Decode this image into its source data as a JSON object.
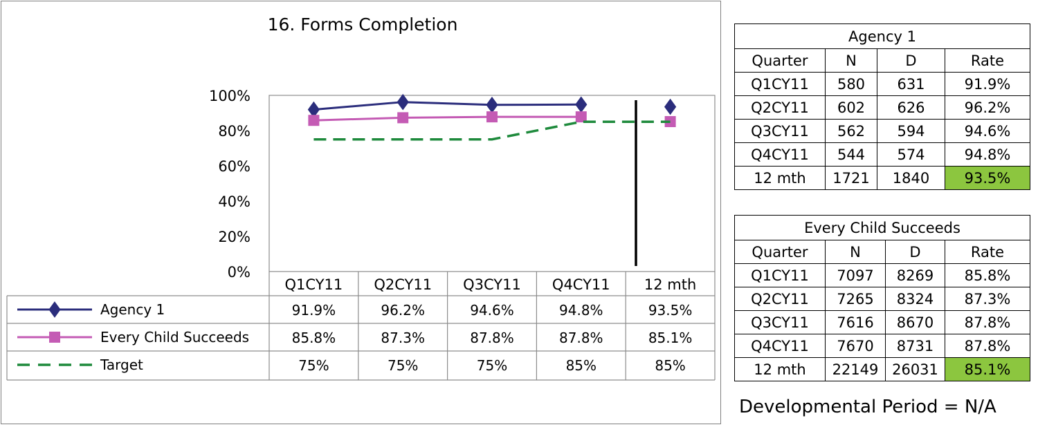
{
  "chart_data": {
    "type": "line",
    "title": "16. Forms Completion",
    "categories": [
      "Q1CY11",
      "Q2CY11",
      "Q3CY11",
      "Q4CY11",
      "12 mth"
    ],
    "ylim": [
      0,
      100
    ],
    "yticks": [
      "0%",
      "20%",
      "40%",
      "60%",
      "80%",
      "100%"
    ],
    "grid": false,
    "legend": "data-table-below",
    "series": [
      {
        "name": "Agency 1",
        "values": [
          91.9,
          96.2,
          94.6,
          94.8,
          93.5
        ],
        "labels": [
          "91.9%",
          "96.2%",
          "94.6%",
          "94.8%",
          "93.5%"
        ],
        "color": "#2b2d7c",
        "marker": "diamond",
        "line": "solid"
      },
      {
        "name": "Every Child Succeeds",
        "values": [
          85.8,
          87.3,
          87.8,
          87.8,
          85.1
        ],
        "labels": [
          "85.8%",
          "87.3%",
          "87.8%",
          "87.8%",
          "85.1%"
        ],
        "color": "#c45bb4",
        "marker": "square",
        "line": "solid"
      },
      {
        "name": "Target",
        "values": [
          75,
          75,
          75,
          85,
          85
        ],
        "labels": [
          "75%",
          "75%",
          "75%",
          "85%",
          "85%"
        ],
        "color": "#1e8a3c",
        "marker": "none",
        "line": "dashed"
      }
    ]
  },
  "tables": [
    {
      "title": "Agency 1",
      "headers": [
        "Quarter",
        "N",
        "D",
        "Rate"
      ],
      "rows": [
        [
          "Q1CY11",
          "580",
          "631",
          "91.9%"
        ],
        [
          "Q2CY11",
          "602",
          "626",
          "96.2%"
        ],
        [
          "Q3CY11",
          "562",
          "594",
          "94.6%"
        ],
        [
          "Q4CY11",
          "544",
          "574",
          "94.8%"
        ],
        [
          "12 mth",
          "1721",
          "1840",
          "93.5%"
        ]
      ]
    },
    {
      "title": "Every Child Succeeds",
      "headers": [
        "Quarter",
        "N",
        "D",
        "Rate"
      ],
      "rows": [
        [
          "Q1CY11",
          "7097",
          "8269",
          "85.8%"
        ],
        [
          "Q2CY11",
          "7265",
          "8324",
          "87.3%"
        ],
        [
          "Q3CY11",
          "7616",
          "8670",
          "87.8%"
        ],
        [
          "Q4CY11",
          "7670",
          "8731",
          "87.8%"
        ],
        [
          "12 mth",
          "22149",
          "26031",
          "85.1%"
        ]
      ]
    }
  ],
  "highlight_color": "#8cc63f",
  "footer": "Developmental Period = N/A"
}
